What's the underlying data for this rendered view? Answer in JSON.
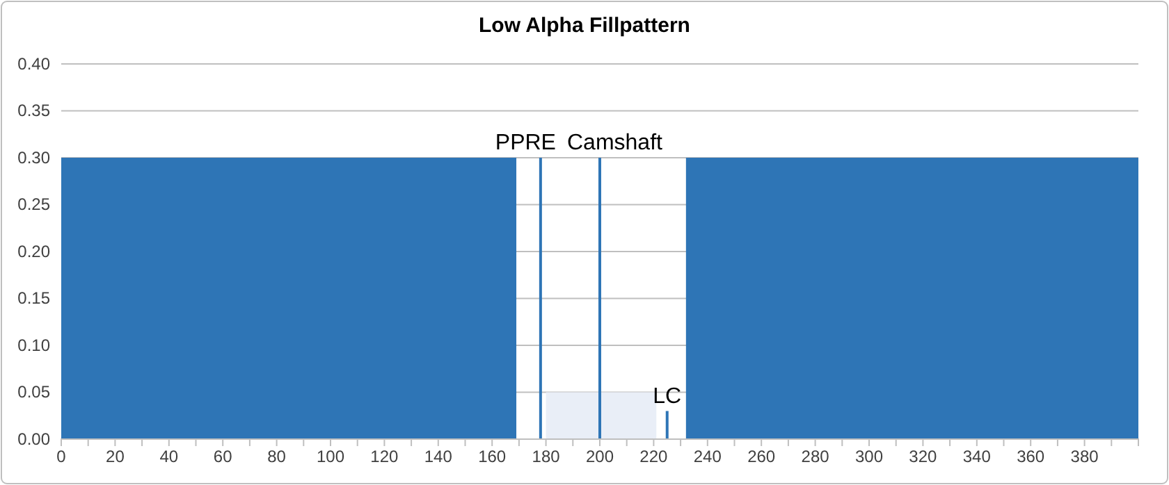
{
  "chart_data": {
    "type": "area",
    "title": "Low Alpha Fillpattern",
    "xlim": [
      0,
      400
    ],
    "xticks": [
      0,
      {
        "value": 10,
        "label": null
      },
      20,
      {
        "value": 30,
        "label": null
      },
      40,
      {
        "value": 50,
        "label": null
      },
      60,
      {
        "value": 70,
        "label": null
      },
      80,
      {
        "value": 90,
        "label": null
      },
      100,
      {
        "value": 110,
        "label": null
      },
      120,
      {
        "value": 130,
        "label": null
      },
      140,
      {
        "value": 150,
        "label": null
      },
      160,
      {
        "value": 170,
        "label": null
      },
      180,
      {
        "value": 190,
        "label": null
      },
      200,
      {
        "value": 210,
        "label": null
      },
      220,
      {
        "value": 230,
        "label": null
      },
      240,
      {
        "value": 250,
        "label": null
      },
      260,
      {
        "value": 270,
        "label": null
      },
      280,
      {
        "value": 290,
        "label": null
      },
      300,
      {
        "value": 310,
        "label": null
      },
      320,
      {
        "value": 330,
        "label": null
      },
      340,
      {
        "value": 350,
        "label": null
      },
      360,
      {
        "value": 370,
        "label": null
      },
      380,
      {
        "value": 390,
        "label": null
      },
      {
        "value": 400,
        "label": null
      }
    ],
    "ylim": [
      0,
      0.4
    ],
    "yticks": [
      {
        "value": 0,
        "label": "0.00"
      },
      {
        "value": 0.05,
        "label": "0.05"
      },
      {
        "value": 0.1,
        "label": "0.10"
      },
      {
        "value": 0.15,
        "label": "0.15"
      },
      {
        "value": 0.2,
        "label": "0.20"
      },
      {
        "value": 0.25,
        "label": "0.25"
      },
      {
        "value": 0.3,
        "label": "0.30"
      },
      {
        "value": 0.35,
        "label": "0.35"
      },
      {
        "value": 0.4,
        "label": "0.40"
      }
    ],
    "grid": "y",
    "series": [
      {
        "color": "#2e75b6",
        "x": [
          0,
          169
        ],
        "values": [
          0.3,
          0.3
        ]
      },
      {
        "color": "#2e75b6",
        "x": [
          232,
          400
        ],
        "values": [
          0.3,
          0.3
        ]
      },
      {
        "color": "#e9eef7",
        "x": [
          180,
          221
        ],
        "values": [
          0.05,
          0.05
        ]
      },
      {
        "type": "line",
        "name": "PPRE",
        "color": "#2e75b6",
        "x": [
          178,
          178
        ],
        "values": [
          0,
          0.3
        ]
      },
      {
        "type": "line",
        "name": "Camshaft",
        "color": "#2e75b6",
        "x": [
          200,
          200
        ],
        "values": [
          0,
          0.3
        ]
      },
      {
        "type": "line",
        "name": "LC",
        "color": "#2e75b6",
        "x": [
          225,
          225
        ],
        "values": [
          0,
          0.03
        ]
      }
    ]
  }
}
